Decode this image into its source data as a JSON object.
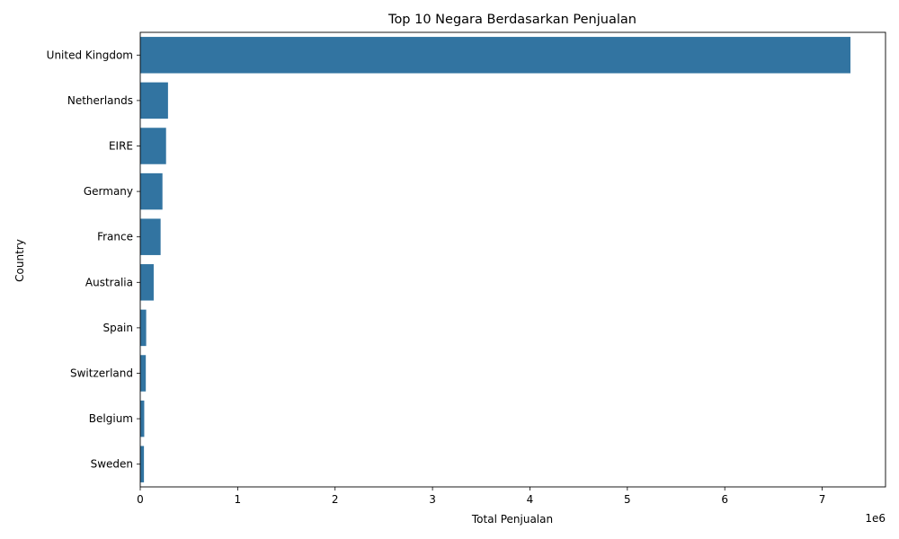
{
  "chart_data": {
    "type": "bar",
    "orientation": "horizontal",
    "title": "Top 10 Negara Berdasarkan Penjualan",
    "xlabel": "Total Penjualan",
    "ylabel": "Country",
    "offset_label": "1e6",
    "categories": [
      "United Kingdom",
      "Netherlands",
      "EIRE",
      "Germany",
      "France",
      "Australia",
      "Spain",
      "Switzerland",
      "Belgium",
      "Sweden"
    ],
    "values": [
      7290000,
      285000,
      265000,
      228000,
      209000,
      138000,
      61000,
      57000,
      41000,
      38000
    ],
    "xlim": [
      0,
      7650000
    ],
    "xticks": [
      0,
      1000000,
      2000000,
      3000000,
      4000000,
      5000000,
      6000000,
      7000000
    ],
    "xtick_labels": [
      "0",
      "1",
      "2",
      "3",
      "4",
      "5",
      "6",
      "7"
    ],
    "bar_color": "#3274a1",
    "grid": false,
    "legend": "none"
  }
}
